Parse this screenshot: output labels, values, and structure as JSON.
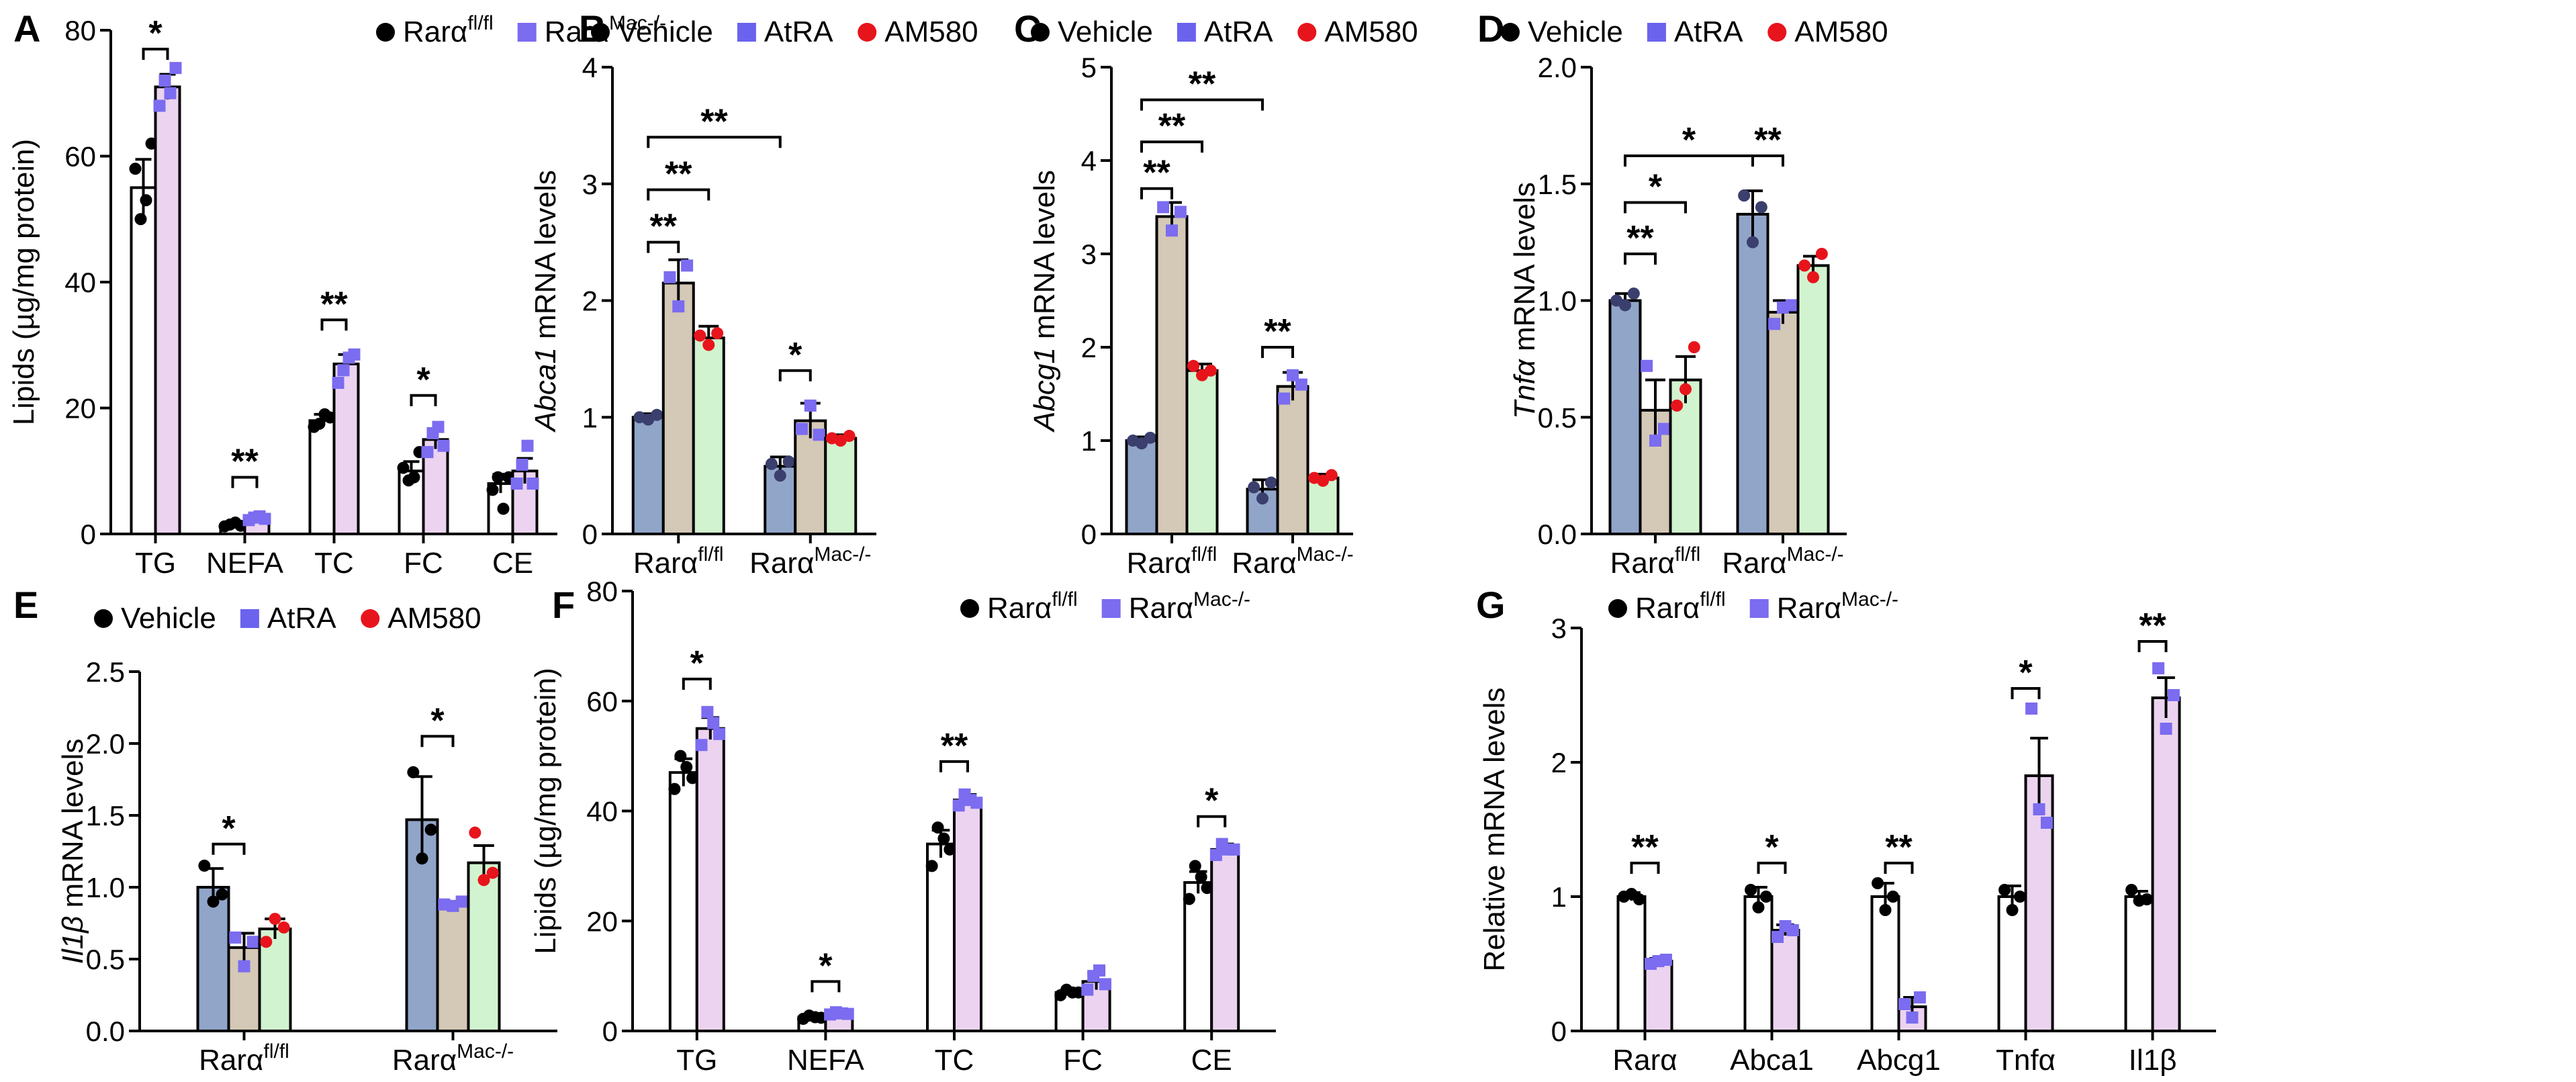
{
  "legend_sets": {
    "genotype": [
      {
        "base": "Rarα",
        "sup": "fl/fl",
        "color": "#000000",
        "marker": "circle"
      },
      {
        "base": "Rarα",
        "sup": "Mac-/-",
        "color": "#7b6cf0",
        "marker": "square"
      }
    ],
    "treatment": [
      {
        "label": "Vehicle",
        "color": "#000000",
        "marker": "circle"
      },
      {
        "label": "AtRA",
        "color": "#6b63ee",
        "marker": "square"
      },
      {
        "label": "AM580",
        "color": "#e8141c",
        "marker": "circle"
      }
    ]
  },
  "colors": {
    "bar_white": "#ffffff",
    "bar_pink": "#ecd3f0",
    "bar_blue": "#91a5c9",
    "bar_tan": "#d4c8b6",
    "bar_green": "#d2f3cf",
    "dot_black": "#000000",
    "dot_purple": "#7b6cf0",
    "dot_red": "#e8141c",
    "dot_blue_dark": "#3a3f6e"
  },
  "chart_data": [
    {
      "panel": "A",
      "type": "bar",
      "layout": "pair",
      "ylabel": "Lipids (µg/mg protein)",
      "ylabel_italic": "",
      "ylim": [
        0,
        80
      ],
      "yticks": [
        0,
        20,
        40,
        60,
        80
      ],
      "categories": [
        "TG",
        "NEFA",
        "TC",
        "FC",
        "CE"
      ],
      "legend": "genotype",
      "series": [
        {
          "name": "Rarα fl/fl",
          "fill": "bar_white",
          "dot": "dot_black",
          "marker": "circle",
          "values": [
            55,
            1.5,
            18,
            10,
            8
          ],
          "errors": [
            4.5,
            0.3,
            1,
            1.5,
            1.5
          ],
          "points": [
            [
              58,
              50,
              53,
              62
            ],
            [
              1.2,
              1.5,
              1.8,
              1.3
            ],
            [
              17,
              17.5,
              19,
              18.5
            ],
            [
              10.5,
              8.5,
              9,
              13
            ],
            [
              7,
              9,
              4,
              9
            ]
          ]
        },
        {
          "name": "Rarα Mac-/-",
          "fill": "bar_pink",
          "dot": "dot_purple",
          "marker": "square",
          "values": [
            71,
            2.5,
            27,
            15,
            10
          ],
          "errors": [
            2,
            0.2,
            1.5,
            1.5,
            2
          ],
          "points": [
            [
              68,
              72,
              70,
              74
            ],
            [
              2.2,
              2.6,
              2.8,
              2.4
            ],
            [
              24,
              26,
              28,
              28.5
            ],
            [
              13,
              16,
              17,
              14
            ],
            [
              8,
              11,
              14,
              8
            ]
          ]
        }
      ],
      "sig": [
        {
          "x1": 0,
          "x2": 1,
          "cat": 0,
          "y": 77,
          "label": "*"
        },
        {
          "x1": 0,
          "x2": 1,
          "cat": 1,
          "y": 9,
          "label": "**"
        },
        {
          "x1": 0,
          "x2": 1,
          "cat": 2,
          "y": 34,
          "label": "**"
        },
        {
          "x1": 0,
          "x2": 1,
          "cat": 3,
          "y": 22,
          "label": "*"
        }
      ]
    },
    {
      "panel": "B",
      "type": "bar",
      "layout": "triple",
      "ylabel": " mRNA levels",
      "ylabel_italic": "Abca1",
      "ylim": [
        0,
        4
      ],
      "yticks": [
        0,
        1,
        2,
        3,
        4
      ],
      "categories": [
        {
          "base": "Rarα",
          "sup": "fl/fl"
        },
        {
          "base": "Rarα",
          "sup": "Mac-/-"
        }
      ],
      "legend": "treatment",
      "series": [
        {
          "name": "Vehicle",
          "fill": "bar_blue",
          "dot": "dot_blue_dark",
          "marker": "circle",
          "values": [
            1.0,
            0.58
          ],
          "errors": [
            0.03,
            0.08
          ],
          "points": [
            [
              1.0,
              0.98,
              1.02
            ],
            [
              0.6,
              0.5,
              0.62
            ]
          ]
        },
        {
          "name": "AtRA",
          "fill": "bar_tan",
          "dot": "dot_purple",
          "marker": "square",
          "values": [
            2.15,
            0.97
          ],
          "errors": [
            0.2,
            0.15
          ],
          "points": [
            [
              2.2,
              1.95,
              2.3
            ],
            [
              0.9,
              1.1,
              0.85
            ]
          ]
        },
        {
          "name": "AM580",
          "fill": "bar_green",
          "dot": "dot_red",
          "marker": "circle",
          "values": [
            1.68,
            0.82
          ],
          "errors": [
            0.1,
            0.03
          ],
          "points": [
            [
              1.7,
              1.62,
              1.72
            ],
            [
              0.82,
              0.8,
              0.84
            ]
          ]
        }
      ],
      "sig": [
        {
          "a": [
            0,
            0
          ],
          "b": [
            0,
            1
          ],
          "y": 2.5,
          "label": "**"
        },
        {
          "a": [
            0,
            0
          ],
          "b": [
            0,
            2
          ],
          "y": 2.95,
          "label": "**"
        },
        {
          "a": [
            0,
            0
          ],
          "b": [
            1,
            0
          ],
          "y": 3.4,
          "label": "**"
        },
        {
          "a": [
            1,
            0
          ],
          "b": [
            1,
            1
          ],
          "y": 1.4,
          "label": "*"
        }
      ]
    },
    {
      "panel": "C",
      "type": "bar",
      "layout": "triple",
      "ylabel": " mRNA levels",
      "ylabel_italic": "Abcg1",
      "ylim": [
        0,
        5
      ],
      "yticks": [
        0,
        1,
        2,
        3,
        4,
        5
      ],
      "categories": [
        {
          "base": "Rarα",
          "sup": "fl/fl"
        },
        {
          "base": "Rarα",
          "sup": "Mac-/-"
        }
      ],
      "legend": "treatment",
      "series": [
        {
          "name": "Vehicle",
          "fill": "bar_blue",
          "dot": "dot_blue_dark",
          "marker": "circle",
          "values": [
            1.0,
            0.48
          ],
          "errors": [
            0.04,
            0.1
          ],
          "points": [
            [
              1.0,
              0.97,
              1.03
            ],
            [
              0.5,
              0.38,
              0.55
            ]
          ]
        },
        {
          "name": "AtRA",
          "fill": "bar_tan",
          "dot": "dot_purple",
          "marker": "square",
          "values": [
            3.4,
            1.58
          ],
          "errors": [
            0.15,
            0.15
          ],
          "points": [
            [
              3.5,
              3.25,
              3.45
            ],
            [
              1.45,
              1.7,
              1.6
            ]
          ]
        },
        {
          "name": "AM580",
          "fill": "bar_green",
          "dot": "dot_red",
          "marker": "circle",
          "values": [
            1.75,
            0.6
          ],
          "errors": [
            0.07,
            0.04
          ],
          "points": [
            [
              1.8,
              1.7,
              1.75
            ],
            [
              0.6,
              0.57,
              0.63
            ]
          ]
        }
      ],
      "sig": [
        {
          "a": [
            0,
            0
          ],
          "b": [
            0,
            1
          ],
          "y": 3.7,
          "label": "**"
        },
        {
          "a": [
            0,
            0
          ],
          "b": [
            0,
            2
          ],
          "y": 4.2,
          "label": "**"
        },
        {
          "a": [
            0,
            0
          ],
          "b": [
            1,
            0
          ],
          "y": 4.65,
          "label": "**"
        },
        {
          "a": [
            1,
            0
          ],
          "b": [
            1,
            1
          ],
          "y": 2.0,
          "label": "**"
        }
      ]
    },
    {
      "panel": "D",
      "type": "bar",
      "layout": "triple",
      "ylabel": " mRNA levels",
      "ylabel_italic": "Tnfα",
      "ylim": [
        0,
        2.0
      ],
      "yticks": [
        0.0,
        0.5,
        1.0,
        1.5,
        2.0
      ],
      "categories": [
        {
          "base": "Rarα",
          "sup": "fl/fl"
        },
        {
          "base": "Rarα",
          "sup": "Mac-/-"
        }
      ],
      "legend": "treatment",
      "series": [
        {
          "name": "Vehicle",
          "fill": "bar_blue",
          "dot": "dot_blue_dark",
          "marker": "circle",
          "values": [
            1.0,
            1.37
          ],
          "errors": [
            0.03,
            0.1
          ],
          "points": [
            [
              1.0,
              0.98,
              1.03
            ],
            [
              1.45,
              1.25,
              1.4
            ]
          ]
        },
        {
          "name": "AtRA",
          "fill": "bar_tan",
          "dot": "dot_purple",
          "marker": "square",
          "values": [
            0.53,
            0.95
          ],
          "errors": [
            0.13,
            0.05
          ],
          "points": [
            [
              0.72,
              0.4,
              0.45
            ],
            [
              0.9,
              0.97,
              0.98
            ]
          ]
        },
        {
          "name": "AM580",
          "fill": "bar_green",
          "dot": "dot_red",
          "marker": "circle",
          "values": [
            0.66,
            1.15
          ],
          "errors": [
            0.1,
            0.04
          ],
          "points": [
            [
              0.55,
              0.62,
              0.8
            ],
            [
              1.15,
              1.1,
              1.2
            ]
          ]
        }
      ],
      "sig": [
        {
          "a": [
            0,
            0
          ],
          "b": [
            0,
            1
          ],
          "y": 1.2,
          "label": "**"
        },
        {
          "a": [
            0,
            0
          ],
          "b": [
            0,
            2
          ],
          "y": 1.42,
          "label": "*"
        },
        {
          "a": [
            0,
            0
          ],
          "b": [
            1,
            0
          ],
          "y": 1.62,
          "label": "*"
        },
        {
          "a": [
            1,
            0
          ],
          "b": [
            1,
            1
          ],
          "y": 1.62,
          "label": "**"
        }
      ]
    },
    {
      "panel": "E",
      "type": "bar",
      "layout": "triple",
      "ylabel": " mRNA levels",
      "ylabel_italic": "Il1β",
      "ylim": [
        0,
        2.5
      ],
      "yticks": [
        0.0,
        0.5,
        1.0,
        1.5,
        2.0,
        2.5
      ],
      "categories": [
        {
          "base": "Rarα",
          "sup": "fl/fl"
        },
        {
          "base": "Rarα",
          "sup": "Mac-/-"
        }
      ],
      "legend": "treatment",
      "series": [
        {
          "name": "Vehicle",
          "fill": "bar_blue",
          "dot": "dot_black",
          "marker": "circle",
          "values": [
            1.0,
            1.47
          ],
          "errors": [
            0.13,
            0.3
          ],
          "points": [
            [
              1.15,
              0.9,
              0.95
            ],
            [
              1.8,
              1.2,
              1.4
            ]
          ]
        },
        {
          "name": "AtRA",
          "fill": "bar_tan",
          "dot": "dot_purple",
          "marker": "square",
          "values": [
            0.58,
            0.88
          ],
          "errors": [
            0.1,
            0.02
          ],
          "points": [
            [
              0.65,
              0.45,
              0.62
            ],
            [
              0.88,
              0.87,
              0.9
            ]
          ]
        },
        {
          "name": "AM580",
          "fill": "bar_green",
          "dot": "dot_red",
          "marker": "circle",
          "values": [
            0.71,
            1.17
          ],
          "errors": [
            0.07,
            0.12
          ],
          "points": [
            [
              0.62,
              0.78,
              0.72
            ],
            [
              1.38,
              1.05,
              1.1
            ]
          ]
        }
      ],
      "sig": [
        {
          "a": [
            0,
            0
          ],
          "b": [
            0,
            1
          ],
          "y": 1.3,
          "label": "*"
        },
        {
          "a": [
            1,
            0
          ],
          "b": [
            1,
            1
          ],
          "y": 2.05,
          "label": "*"
        }
      ]
    },
    {
      "panel": "F",
      "type": "bar",
      "layout": "pair",
      "ylabel": "Lipids (µg/mg protein)",
      "ylabel_italic": "",
      "ylim": [
        0,
        80
      ],
      "yticks": [
        0,
        20,
        40,
        60,
        80
      ],
      "categories": [
        "TG",
        "NEFA",
        "TC",
        "FC",
        "CE"
      ],
      "legend": "genotype",
      "series": [
        {
          "name": "Rarα fl/fl",
          "fill": "bar_white",
          "dot": "dot_black",
          "marker": "circle",
          "values": [
            47,
            2.5,
            34,
            7,
            27
          ],
          "errors": [
            2.5,
            0.3,
            2.5,
            0.4,
            2
          ],
          "points": [
            [
              44,
              50,
              48,
              46
            ],
            [
              2.2,
              2.8,
              2.5,
              2.4
            ],
            [
              30,
              37,
              35,
              33
            ],
            [
              6.5,
              7.5,
              7,
              7
            ],
            [
              24,
              30,
              28,
              26
            ]
          ]
        },
        {
          "name": "Rarα Mac-/-",
          "fill": "bar_pink",
          "dot": "dot_purple",
          "marker": "square",
          "values": [
            55,
            3.2,
            42,
            9,
            33
          ],
          "errors": [
            2,
            0.3,
            1,
            1.5,
            1
          ],
          "points": [
            [
              52,
              58,
              56,
              54
            ],
            [
              3,
              3.4,
              3.2,
              3.1
            ],
            [
              41,
              43,
              42,
              41.5
            ],
            [
              7.5,
              10,
              11,
              8.5
            ],
            [
              32,
              34,
              33,
              33
            ]
          ]
        }
      ],
      "sig": [
        {
          "x1": 0,
          "x2": 1,
          "cat": 0,
          "y": 64,
          "label": "*"
        },
        {
          "x1": 0,
          "x2": 1,
          "cat": 1,
          "y": 9,
          "label": "*"
        },
        {
          "x1": 0,
          "x2": 1,
          "cat": 2,
          "y": 49,
          "label": "**"
        },
        {
          "x1": 0,
          "x2": 1,
          "cat": 4,
          "y": 39,
          "label": "*"
        }
      ]
    },
    {
      "panel": "G",
      "type": "bar",
      "layout": "pair",
      "ylabel": "Relative mRNA levels",
      "ylabel_italic": "",
      "ylim": [
        0,
        3
      ],
      "yticks": [
        0,
        1,
        2,
        3
      ],
      "categories": [
        "Rarα",
        "Abca1",
        "Abcg1",
        "Tnfα",
        "Il1β"
      ],
      "legend": "genotype",
      "series": [
        {
          "name": "Rarα fl/fl",
          "fill": "bar_white",
          "dot": "dot_black",
          "marker": "circle",
          "values": [
            1.0,
            1.0,
            1.0,
            1.0,
            1.0
          ],
          "errors": [
            0.03,
            0.07,
            0.1,
            0.08,
            0.04
          ],
          "points": [
            [
              1.0,
              1.02,
              0.98
            ],
            [
              1.05,
              0.92,
              1.0
            ],
            [
              1.1,
              0.9,
              1.0
            ],
            [
              1.05,
              0.9,
              1.0
            ],
            [
              1.05,
              0.97,
              0.98
            ]
          ]
        },
        {
          "name": "Rarα Mac-/-",
          "fill": "bar_pink",
          "dot": "dot_purple",
          "marker": "square",
          "values": [
            0.52,
            0.75,
            0.18,
            1.9,
            2.48
          ],
          "errors": [
            0.02,
            0.04,
            0.07,
            0.28,
            0.15
          ],
          "points": [
            [
              0.5,
              0.52,
              0.53
            ],
            [
              0.7,
              0.78,
              0.75
            ],
            [
              0.2,
              0.1,
              0.25
            ],
            [
              2.4,
              1.65,
              1.55
            ],
            [
              2.7,
              2.25,
              2.5
            ]
          ]
        }
      ],
      "sig": [
        {
          "x1": 0,
          "x2": 1,
          "cat": 0,
          "y": 1.25,
          "label": "**"
        },
        {
          "x1": 0,
          "x2": 1,
          "cat": 1,
          "y": 1.25,
          "label": "*"
        },
        {
          "x1": 0,
          "x2": 1,
          "cat": 2,
          "y": 1.25,
          "label": "**"
        },
        {
          "x1": 0,
          "x2": 1,
          "cat": 3,
          "y": 2.55,
          "label": "*"
        },
        {
          "x1": 0,
          "x2": 1,
          "cat": 4,
          "y": 2.9,
          "label": "**"
        }
      ]
    }
  ]
}
